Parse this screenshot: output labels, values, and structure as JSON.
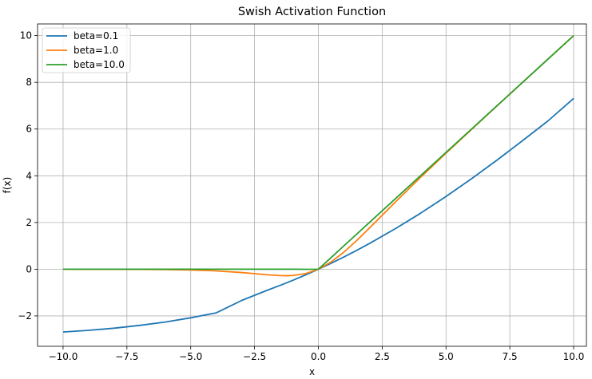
{
  "chart_data": {
    "type": "line",
    "title": "Swish Activation Function",
    "xlabel": "x",
    "ylabel": "f(x)",
    "xlim": [
      -11.0,
      10.5
    ],
    "ylim": [
      -3.3,
      10.5
    ],
    "grid": true,
    "legend_position": "top-left",
    "x_ticks": [
      -10.0,
      -7.5,
      -5.0,
      -2.5,
      0.0,
      2.5,
      5.0,
      7.5,
      10.0
    ],
    "x_tick_labels": [
      "−10.0",
      "−7.5",
      "−5.0",
      "−2.5",
      "0.0",
      "2.5",
      "5.0",
      "7.5",
      "10.0"
    ],
    "y_ticks": [
      -2,
      0,
      2,
      4,
      6,
      8,
      10
    ],
    "y_tick_labels": [
      "−2",
      "0",
      "2",
      "4",
      "6",
      "8",
      "10"
    ],
    "x": [
      -10,
      -9,
      -8,
      -7,
      -6,
      -5,
      -4,
      -3,
      -2,
      -1.5,
      -1.25,
      -1,
      -0.5,
      0,
      0.5,
      1,
      1.5,
      2,
      3,
      4,
      5,
      6,
      7,
      8,
      9,
      10
    ],
    "series": [
      {
        "name": "beta=0.1",
        "color": "#1f77b4",
        "values": [
          -2.689,
          -2.618,
          -2.525,
          -2.405,
          -2.262,
          -2.081,
          -1.868,
          -1.336,
          -0.9,
          -0.694,
          -0.587,
          -0.475,
          -0.244,
          0.0,
          0.256,
          0.525,
          0.806,
          1.1,
          1.726,
          2.394,
          3.112,
          3.874,
          4.672,
          5.505,
          6.354,
          7.311
        ]
      },
      {
        "name": "beta=1.0",
        "color": "#ff7f0e",
        "values": [
          -0.0005,
          -0.0011,
          -0.0027,
          -0.0064,
          -0.0148,
          -0.0335,
          -0.0719,
          -0.1423,
          -0.2384,
          -0.2736,
          -0.2782,
          -0.2689,
          -0.1888,
          0.0,
          0.3112,
          0.7311,
          1.2264,
          1.7616,
          2.8577,
          3.9281,
          4.9665,
          5.9852,
          6.9936,
          7.9973,
          8.9989,
          9.9995
        ]
      },
      {
        "name": "beta=10.0",
        "color": "#2ca02c",
        "values": [
          0.0,
          0.0,
          0.0,
          0.0,
          0.0,
          0.0,
          0.0,
          0.0,
          0.0,
          0.0,
          0.0,
          -0.0,
          -0.0034,
          0.0,
          0.4966,
          1.0,
          1.5,
          2.0,
          3.0,
          4.0,
          5.0,
          6.0,
          7.0,
          8.0,
          9.0,
          10.0
        ]
      }
    ]
  }
}
